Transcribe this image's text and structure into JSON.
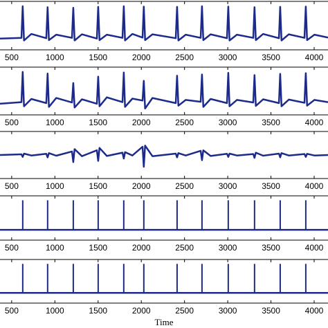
{
  "chart_data": [
    {
      "type": "line",
      "color": "#1c2a8a",
      "xlim": [
        365,
        4160
      ],
      "ylim": [
        -0.35,
        1.15
      ],
      "xticks": [
        500,
        1000,
        1500,
        2000,
        2500,
        3000,
        3500,
        4000
      ],
      "x": [
        365,
        613,
        628,
        643,
        728,
        901,
        916,
        931,
        1016,
        1198,
        1213,
        1228,
        1313,
        1486,
        1501,
        1516,
        1601,
        1782,
        1797,
        1812,
        1897,
        2014,
        2029,
        2044,
        2129,
        2399,
        2414,
        2429,
        2514,
        2687,
        2702,
        2717,
        2802,
        2991,
        3006,
        3021,
        3106,
        3295,
        3310,
        3325,
        3410,
        3592,
        3607,
        3622,
        3707,
        3888,
        3903,
        3918,
        4003,
        4160
      ],
      "values": [
        0.0,
        0.02,
        1.0,
        -0.06,
        0.14,
        0.01,
        0.97,
        -0.05,
        0.12,
        0.02,
        0.95,
        -0.06,
        0.13,
        0.0,
        0.98,
        -0.05,
        0.12,
        0.02,
        1.0,
        -0.06,
        0.14,
        0.03,
        0.99,
        -0.05,
        0.13,
        0.01,
        0.98,
        -0.06,
        0.12,
        0.02,
        1.0,
        -0.05,
        0.13,
        0.01,
        0.99,
        -0.06,
        0.12,
        0.02,
        0.97,
        -0.05,
        0.14,
        0.01,
        0.98,
        -0.06,
        0.13,
        0.02,
        0.99,
        -0.05,
        0.12,
        0.03
      ]
    },
    {
      "type": "line",
      "color": "#1c2a8a",
      "xlim": [
        365,
        4160
      ],
      "ylim": [
        -0.35,
        1.15
      ],
      "xticks": [
        500,
        1000,
        1500,
        2000,
        2500,
        3000,
        3500,
        4000
      ],
      "x": [
        365,
        613,
        628,
        643,
        728,
        901,
        916,
        931,
        1016,
        1198,
        1213,
        1228,
        1313,
        1486,
        1501,
        1516,
        1601,
        1782,
        1797,
        1812,
        1897,
        2014,
        2029,
        2044,
        2129,
        2399,
        2414,
        2429,
        2514,
        2687,
        2702,
        2717,
        2802,
        2991,
        3006,
        3021,
        3106,
        3295,
        3310,
        3325,
        3410,
        3592,
        3607,
        3622,
        3707,
        3888,
        3903,
        3918,
        4003,
        4160
      ],
      "values": [
        0.0,
        0.05,
        1.0,
        -0.08,
        0.15,
        0.02,
        0.95,
        -0.1,
        0.18,
        0.04,
        0.65,
        -0.12,
        0.14,
        0.0,
        0.85,
        -0.08,
        0.2,
        0.05,
        0.98,
        -0.1,
        0.16,
        0.1,
        0.72,
        -0.15,
        0.18,
        0.02,
        0.88,
        -0.06,
        0.12,
        0.06,
        0.92,
        -0.1,
        0.15,
        0.02,
        0.97,
        -0.08,
        0.12,
        0.04,
        0.9,
        -0.07,
        0.14,
        0.02,
        0.94,
        -0.08,
        0.13,
        0.03,
        0.96,
        -0.06,
        0.12,
        0.05
      ]
    },
    {
      "type": "line",
      "color": "#1c2a8a",
      "xlim": [
        365,
        4160
      ],
      "ylim": [
        -1,
        1
      ],
      "xticks": [
        500,
        1000,
        1500,
        2000,
        2500,
        3000,
        3500,
        4000
      ],
      "x": [
        365,
        613,
        628,
        643,
        728,
        901,
        916,
        931,
        1016,
        1198,
        1213,
        1228,
        1313,
        1486,
        1501,
        1516,
        1601,
        1782,
        1797,
        1812,
        1897,
        2014,
        2029,
        2044,
        2129,
        2399,
        2414,
        2429,
        2514,
        2687,
        2702,
        2717,
        2802,
        2991,
        3006,
        3021,
        3106,
        3295,
        3310,
        3325,
        3410,
        3592,
        3607,
        3622,
        3707,
        3888,
        3903,
        3918,
        4003,
        4160
      ],
      "values": [
        0.0,
        0.03,
        -0.08,
        0.06,
        -0.02,
        0.05,
        -0.1,
        0.08,
        -0.03,
        0.15,
        -0.3,
        0.25,
        -0.05,
        0.2,
        -0.25,
        0.3,
        -0.04,
        0.1,
        -0.15,
        0.12,
        -0.02,
        0.35,
        -0.5,
        0.4,
        -0.05,
        0.06,
        -0.1,
        0.08,
        -0.02,
        0.18,
        -0.22,
        0.2,
        -0.04,
        0.05,
        -0.08,
        0.06,
        -0.02,
        0.04,
        -0.12,
        0.1,
        -0.03,
        0.06,
        -0.1,
        0.08,
        -0.02,
        0.04,
        -0.08,
        0.05,
        -0.02,
        0.0
      ]
    },
    {
      "type": "stem",
      "color": "#1c2a8a",
      "xlim": [
        365,
        4160
      ],
      "ylim": [
        -0.35,
        1.15
      ],
      "xticks": [
        500,
        1000,
        1500,
        2000,
        2500,
        3000,
        3500,
        4000
      ],
      "x": [
        628,
        916,
        1213,
        1501,
        1797,
        2029,
        2414,
        2702,
        3006,
        3310,
        3607,
        3903
      ],
      "values": [
        1,
        1,
        1,
        1,
        1,
        1,
        1,
        1,
        1,
        1,
        1,
        1
      ]
    },
    {
      "type": "stem",
      "color": "#1c2a8a",
      "xlim": [
        365,
        4160
      ],
      "ylim": [
        -0.35,
        1.15
      ],
      "xticks": [
        500,
        1000,
        1500,
        2000,
        2500,
        3000,
        3500,
        4000
      ],
      "xlabel": "Time",
      "x": [
        628,
        916,
        1213,
        1501,
        1797,
        2029,
        2414,
        2702,
        3006,
        3310,
        3607,
        3903
      ],
      "values": [
        1,
        1,
        1,
        1,
        1,
        1,
        1,
        1,
        1,
        1,
        1,
        1
      ]
    }
  ]
}
